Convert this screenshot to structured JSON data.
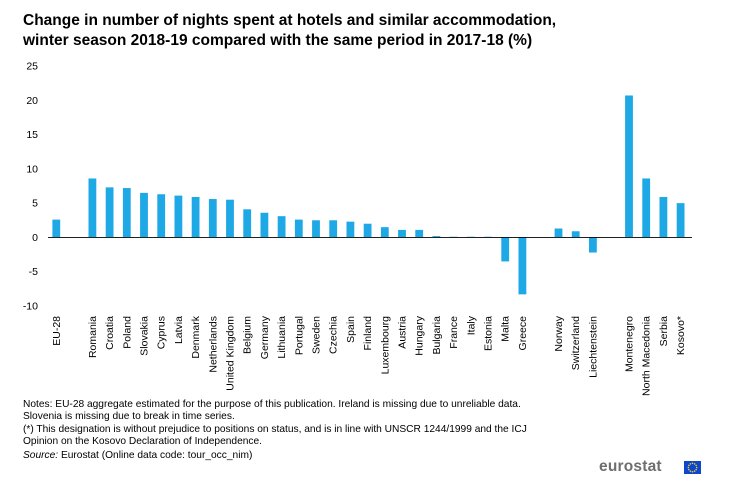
{
  "title": {
    "line1": "Change in number of nights spent at hotels and similar accommodation,",
    "line2": "winter season 2018-19 compared with the same period in 2017-18 (%)"
  },
  "chart_data": {
    "type": "bar",
    "title": "Change in number of nights spent at hotels and similar accommodation, winter season 2018-19 compared with the same period in 2017-18 (%)",
    "xlabel": "",
    "ylabel": "",
    "ylim": [
      -10,
      25
    ],
    "yticks": [
      25,
      20,
      15,
      10,
      5,
      0,
      -5,
      -10
    ],
    "grid": false,
    "bar_color": "#1ea8e6",
    "categories": [
      "EU-28",
      "Romania",
      "Croatia",
      "Poland",
      "Slovakia",
      "Cyprus",
      "Latvia",
      "Denmark",
      "Netherlands",
      "United Kingdom",
      "Belgium",
      "Germany",
      "Lithuania",
      "Portugal",
      "Sweden",
      "Czechia",
      "Spain",
      "Finland",
      "Luxembourg",
      "Austria",
      "Hungary",
      "Bulgaria",
      "France",
      "Italy",
      "Estonia",
      "Malta",
      "Greece",
      "Norway",
      "Switzerland",
      "Liechtenstein",
      "Montenegro",
      "North Macedonia",
      "Serbia",
      "Kosovo*"
    ],
    "values": [
      2.6,
      8.6,
      7.3,
      7.2,
      6.5,
      6.3,
      6.1,
      5.9,
      5.6,
      5.5,
      4.1,
      3.6,
      3.1,
      2.6,
      2.5,
      2.5,
      2.3,
      2.0,
      1.5,
      1.1,
      1.1,
      0.2,
      0.1,
      0.1,
      0.1,
      -3.5,
      -8.3,
      1.3,
      0.9,
      -2.2,
      20.7,
      8.6,
      5.9,
      5.0
    ],
    "groups": [
      1,
      26,
      3,
      4
    ]
  },
  "notes": {
    "line1": "Notes:  EU-28 aggregate estimated for the purpose of this publication. Ireland is missing due to unreliable data.",
    "line2": "Slovenia is missing due to break in time series.",
    "line3": "(*) This designation is without prejudice to positions on status, and is in line with UNSCR 1244/1999 and the ICJ",
    "line4": "Opinion on the Kosovo Declaration of Independence."
  },
  "source": {
    "label": "Source:",
    "text": " Eurostat (Online data code: tour_occ_nim)"
  },
  "logo": {
    "text": "eurostat",
    "flag_color": "#0e47cb",
    "star_color": "#ffd617"
  }
}
